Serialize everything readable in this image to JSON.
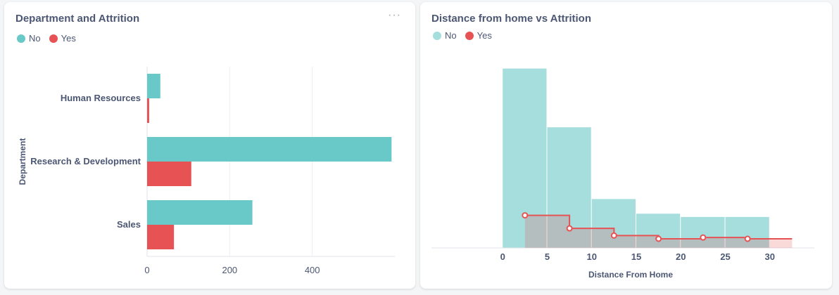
{
  "colors": {
    "no": "#69c8c8",
    "yes": "#e75354",
    "no_hist": "#a6dddd",
    "axis_text": "#4c5773",
    "grid": "#eceef0"
  },
  "cards": [
    {
      "title": "Department and Attrition",
      "menu": "···",
      "legend": [
        "No",
        "Yes"
      ]
    },
    {
      "title": "Distance from home vs Attrition",
      "legend": [
        "No",
        "Yes"
      ]
    }
  ],
  "chart_data": [
    {
      "type": "bar",
      "orientation": "horizontal",
      "title": "Department and Attrition",
      "ylabel": "Department",
      "xlabel": "",
      "categories": [
        "Human Resources",
        "Research & Development",
        "Sales"
      ],
      "series": [
        {
          "name": "No",
          "values": [
            32,
            592,
            255
          ]
        },
        {
          "name": "Yes",
          "values": [
            5,
            107,
            65
          ]
        }
      ],
      "xlim": [
        0,
        600
      ],
      "xticks": [
        "0",
        "200",
        "400"
      ],
      "grid": true,
      "legend": "top-left"
    },
    {
      "type": "area",
      "title": "Distance from home vs Attrition",
      "xlabel": "Distance From Home",
      "ylabel": "",
      "bin_edges": [
        0,
        5,
        10,
        15,
        20,
        25,
        30
      ],
      "series": [
        {
          "name": "No",
          "values": [
            550,
            370,
            150,
            105,
            95,
            95
          ]
        },
        {
          "name": "Yes",
          "values": [
            100,
            60,
            38,
            28,
            32,
            28
          ]
        }
      ],
      "xlim": [
        -8,
        35
      ],
      "ylim": [
        0,
        560
      ],
      "xticks": [
        "0",
        "5",
        "10",
        "15",
        "20",
        "25",
        "30"
      ],
      "grid": false,
      "legend": "top-left"
    }
  ]
}
